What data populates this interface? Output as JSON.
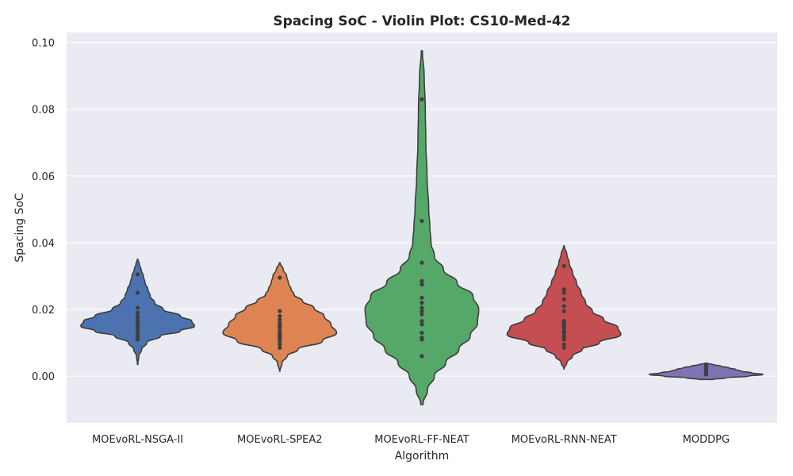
{
  "chart_data": {
    "type": "violin",
    "title": "Spacing SoC - Violin Plot: CS10-Med-42",
    "xlabel": "Algorithm",
    "ylabel": "Spacing SoC",
    "ylim": [
      -0.014,
      0.103
    ],
    "yticks": [
      0.0,
      0.02,
      0.04,
      0.06,
      0.08,
      0.1
    ],
    "ytick_labels": [
      "0.00",
      "0.02",
      "0.04",
      "0.06",
      "0.08",
      "0.10"
    ],
    "grid": true,
    "background_color": "#eaeaf2",
    "categories": [
      "MOEvoRL-NSGA-II",
      "MOEvoRL-SPEA2",
      "MOEvoRL-FF-NEAT",
      "MOEvoRL-RNN-NEAT",
      "MODDPG"
    ],
    "series": [
      {
        "color": "#4c72b0",
        "points": [
          0.0305,
          0.025,
          0.0205,
          0.019,
          0.018,
          0.0175,
          0.0165,
          0.016,
          0.0155,
          0.015,
          0.0145,
          0.014,
          0.013,
          0.012,
          0.0115,
          0.011
        ],
        "density": [
          [
            0.0035,
            0.003
          ],
          [
            0.006,
            0.02
          ],
          [
            0.008,
            0.07
          ],
          [
            0.01,
            0.16
          ],
          [
            0.012,
            0.4
          ],
          [
            0.0135,
            0.75
          ],
          [
            0.015,
            1.0
          ],
          [
            0.0165,
            0.95
          ],
          [
            0.018,
            0.75
          ],
          [
            0.02,
            0.45
          ],
          [
            0.022,
            0.3
          ],
          [
            0.024,
            0.22
          ],
          [
            0.026,
            0.18
          ],
          [
            0.028,
            0.13
          ],
          [
            0.03,
            0.1
          ],
          [
            0.032,
            0.06
          ],
          [
            0.0335,
            0.03
          ],
          [
            0.035,
            0.005
          ]
        ]
      },
      {
        "color": "#dd8452",
        "points": [
          0.0295,
          0.0195,
          0.018,
          0.017,
          0.016,
          0.0155,
          0.015,
          0.0145,
          0.0135,
          0.013,
          0.0125,
          0.012,
          0.0115,
          0.011,
          0.0105,
          0.0095,
          0.0085
        ],
        "density": [
          [
            0.0015,
            0.003
          ],
          [
            0.004,
            0.04
          ],
          [
            0.006,
            0.13
          ],
          [
            0.008,
            0.32
          ],
          [
            0.0105,
            0.75
          ],
          [
            0.013,
            1.0
          ],
          [
            0.0155,
            0.9
          ],
          [
            0.018,
            0.78
          ],
          [
            0.0205,
            0.6
          ],
          [
            0.0225,
            0.4
          ],
          [
            0.0245,
            0.25
          ],
          [
            0.026,
            0.2
          ],
          [
            0.028,
            0.15
          ],
          [
            0.03,
            0.12
          ],
          [
            0.032,
            0.06
          ],
          [
            0.034,
            0.005
          ]
        ]
      },
      {
        "color": "#55a868",
        "points": [
          0.083,
          0.0465,
          0.034,
          0.0285,
          0.0275,
          0.0235,
          0.022,
          0.0205,
          0.0195,
          0.0185,
          0.0165,
          0.0155,
          0.013,
          0.0115,
          0.011,
          0.006
        ],
        "density": [
          [
            -0.0085,
            0.02
          ],
          [
            -0.004,
            0.1
          ],
          [
            0.0,
            0.22
          ],
          [
            0.004,
            0.42
          ],
          [
            0.008,
            0.65
          ],
          [
            0.012,
            0.85
          ],
          [
            0.016,
            0.98
          ],
          [
            0.02,
            1.0
          ],
          [
            0.024,
            0.9
          ],
          [
            0.028,
            0.62
          ],
          [
            0.032,
            0.38
          ],
          [
            0.036,
            0.22
          ],
          [
            0.04,
            0.16
          ],
          [
            0.045,
            0.14
          ],
          [
            0.05,
            0.12
          ],
          [
            0.06,
            0.09
          ],
          [
            0.07,
            0.07
          ],
          [
            0.08,
            0.06
          ],
          [
            0.09,
            0.04
          ],
          [
            0.0975,
            0.01
          ]
        ]
      },
      {
        "color": "#c44e52",
        "points": [
          0.033,
          0.026,
          0.025,
          0.023,
          0.021,
          0.0195,
          0.0165,
          0.016,
          0.0155,
          0.015,
          0.0145,
          0.0135,
          0.013,
          0.012,
          0.0115,
          0.011,
          0.0095,
          0.0085
        ],
        "density": [
          [
            0.0022,
            0.003
          ],
          [
            0.004,
            0.05
          ],
          [
            0.006,
            0.15
          ],
          [
            0.008,
            0.32
          ],
          [
            0.01,
            0.62
          ],
          [
            0.0125,
            1.0
          ],
          [
            0.0145,
            0.95
          ],
          [
            0.017,
            0.7
          ],
          [
            0.0195,
            0.5
          ],
          [
            0.022,
            0.38
          ],
          [
            0.025,
            0.3
          ],
          [
            0.028,
            0.22
          ],
          [
            0.031,
            0.15
          ],
          [
            0.034,
            0.09
          ],
          [
            0.0365,
            0.05
          ],
          [
            0.039,
            0.005
          ]
        ]
      },
      {
        "color": "#8172b3",
        "points": [
          0.0035,
          0.003,
          0.0028,
          0.0025,
          0.0022,
          0.002,
          0.0018,
          0.0015,
          0.0012,
          0.001,
          0.0008,
          0.0005
        ],
        "density": [
          [
            -0.001,
            0.12
          ],
          [
            -0.0005,
            0.35
          ],
          [
            0.0,
            0.75
          ],
          [
            0.0005,
            1.0
          ],
          [
            0.001,
            0.8
          ],
          [
            0.0015,
            0.62
          ],
          [
            0.002,
            0.52
          ],
          [
            0.0025,
            0.4
          ],
          [
            0.003,
            0.26
          ],
          [
            0.0035,
            0.12
          ],
          [
            0.0038,
            0.03
          ]
        ]
      }
    ]
  }
}
